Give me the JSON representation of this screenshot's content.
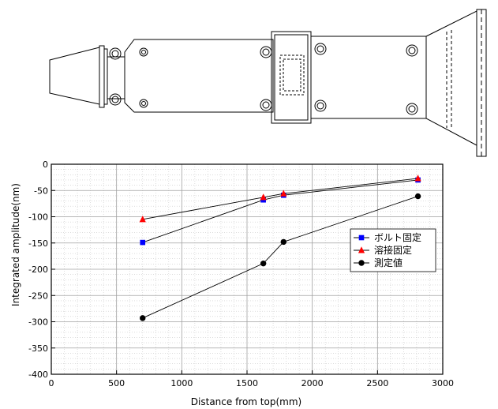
{
  "chart_data": {
    "type": "line",
    "title": "",
    "xlabel": "Distance from top(mm)",
    "ylabel": "Integrated amplitude(nm)",
    "xlim": [
      0,
      3000
    ],
    "ylim": [
      -400,
      0
    ],
    "xticks": [
      0,
      500,
      1000,
      1500,
      2000,
      2500,
      3000
    ],
    "yticks": [
      0,
      -50,
      -100,
      -150,
      -200,
      -250,
      -300,
      -350,
      -400
    ],
    "grid": true,
    "legend_position": "right",
    "series": [
      {
        "name": "ボルト固定",
        "marker": "square",
        "color": "#0000ff",
        "x": [
          700,
          1625,
          1780,
          2810
        ],
        "y": [
          -149,
          -68,
          -59,
          -30
        ]
      },
      {
        "name": "溶接固定",
        "marker": "triangle",
        "color": "#ff0000",
        "x": [
          700,
          1625,
          1780,
          2810
        ],
        "y": [
          -105,
          -63,
          -56,
          -27
        ]
      },
      {
        "name": "測定値",
        "marker": "circle",
        "color": "#000000",
        "x": [
          700,
          1625,
          1780,
          2810
        ],
        "y": [
          -293,
          -189,
          -148,
          -61
        ]
      }
    ]
  }
}
